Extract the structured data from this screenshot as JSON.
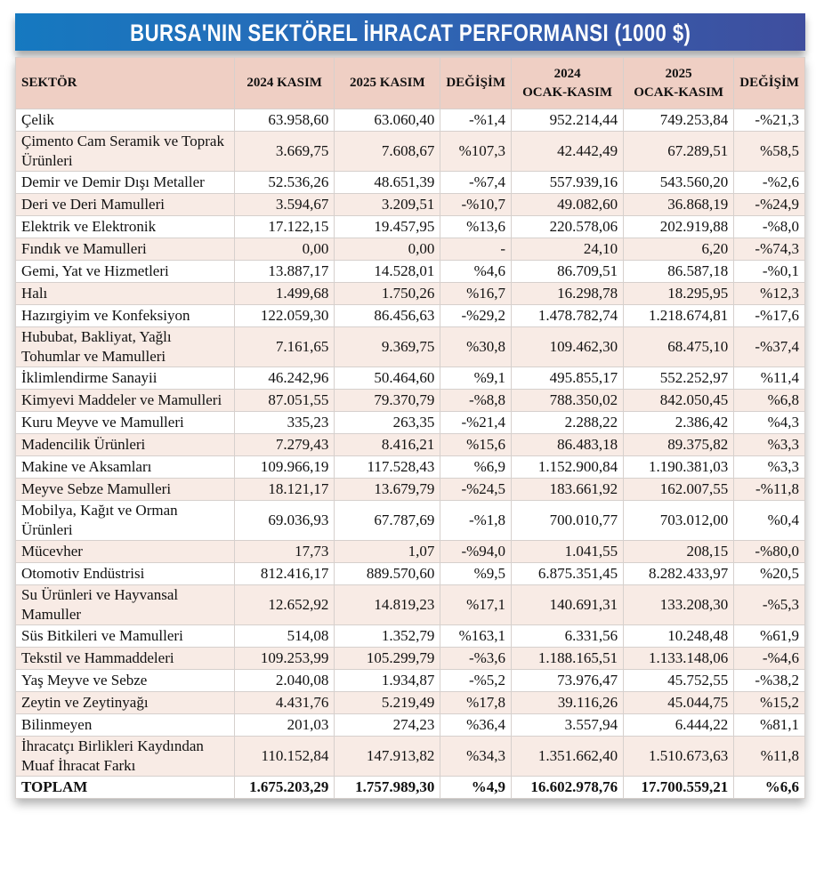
{
  "title": "BURSA'NIN SEKTÖREL İHRACAT PERFORMANSI (1000 $)",
  "headers": [
    "SEKTÖR",
    "2024 KASIM",
    "2025 KASIM",
    "DEĞİŞİM",
    "2024\nOCAK-KASIM",
    "2025\nOCAK-KASIM",
    "DEĞİŞİM"
  ],
  "rows": [
    [
      "Çelik",
      "63.958,60",
      "63.060,40",
      "-%1,4",
      "952.214,44",
      "749.253,84",
      "-%21,3"
    ],
    [
      "Çimento Cam Seramik ve Toprak Ürünleri",
      "3.669,75",
      "7.608,67",
      "%107,3",
      "42.442,49",
      "67.289,51",
      "%58,5"
    ],
    [
      "Demir ve Demir Dışı Metaller",
      "52.536,26",
      "48.651,39",
      "-%7,4",
      "557.939,16",
      "543.560,20",
      "-%2,6"
    ],
    [
      "Deri ve Deri Mamulleri",
      "3.594,67",
      "3.209,51",
      "-%10,7",
      "49.082,60",
      "36.868,19",
      "-%24,9"
    ],
    [
      "Elektrik ve Elektronik",
      "17.122,15",
      "19.457,95",
      "%13,6",
      "220.578,06",
      "202.919,88",
      "-%8,0"
    ],
    [
      "Fındık ve Mamulleri",
      "0,00",
      "0,00",
      "-",
      "24,10",
      "6,20",
      "-%74,3"
    ],
    [
      "Gemi, Yat ve Hizmetleri",
      "13.887,17",
      "14.528,01",
      "%4,6",
      "86.709,51",
      "86.587,18",
      "-%0,1"
    ],
    [
      "Halı",
      "1.499,68",
      "1.750,26",
      "%16,7",
      "16.298,78",
      "18.295,95",
      "%12,3"
    ],
    [
      "Hazırgiyim ve Konfeksiyon",
      "122.059,30",
      "86.456,63",
      "-%29,2",
      "1.478.782,74",
      "1.218.674,81",
      "-%17,6"
    ],
    [
      "Hububat, Bakliyat, Yağlı Tohumlar ve Mamulleri",
      "7.161,65",
      "9.369,75",
      "%30,8",
      "109.462,30",
      "68.475,10",
      "-%37,4"
    ],
    [
      "İklimlendirme Sanayii",
      "46.242,96",
      "50.464,60",
      "%9,1",
      "495.855,17",
      "552.252,97",
      "%11,4"
    ],
    [
      "Kimyevi Maddeler ve Mamulleri",
      "87.051,55",
      "79.370,79",
      "-%8,8",
      "788.350,02",
      "842.050,45",
      "%6,8"
    ],
    [
      "Kuru Meyve ve Mamulleri",
      "335,23",
      "263,35",
      "-%21,4",
      "2.288,22",
      "2.386,42",
      "%4,3"
    ],
    [
      "Madencilik Ürünleri",
      "7.279,43",
      "8.416,21",
      "%15,6",
      "86.483,18",
      "89.375,82",
      "%3,3"
    ],
    [
      "Makine ve Aksamları",
      "109.966,19",
      "117.528,43",
      "%6,9",
      "1.152.900,84",
      "1.190.381,03",
      "%3,3"
    ],
    [
      "Meyve Sebze Mamulleri",
      "18.121,17",
      "13.679,79",
      "-%24,5",
      "183.661,92",
      "162.007,55",
      "-%11,8"
    ],
    [
      "Mobilya, Kağıt ve Orman Ürünleri",
      "69.036,93",
      "67.787,69",
      "-%1,8",
      "700.010,77",
      "703.012,00",
      "%0,4"
    ],
    [
      "Mücevher",
      "17,73",
      "1,07",
      "-%94,0",
      "1.041,55",
      "208,15",
      "-%80,0"
    ],
    [
      "Otomotiv Endüstrisi",
      "812.416,17",
      "889.570,60",
      "%9,5",
      "6.875.351,45",
      "8.282.433,97",
      "%20,5"
    ],
    [
      "Su Ürünleri ve Hayvansal Mamuller",
      "12.652,92",
      "14.819,23",
      "%17,1",
      "140.691,31",
      "133.208,30",
      "-%5,3"
    ],
    [
      "Süs Bitkileri ve Mamulleri",
      "514,08",
      "1.352,79",
      "%163,1",
      "6.331,56",
      "10.248,48",
      "%61,9"
    ],
    [
      "Tekstil ve Hammaddeleri",
      "109.253,99",
      "105.299,79",
      "-%3,6",
      "1.188.165,51",
      "1.133.148,06",
      "-%4,6"
    ],
    [
      "Yaş Meyve ve Sebze",
      "2.040,08",
      "1.934,87",
      "-%5,2",
      "73.976,47",
      "45.752,55",
      "-%38,2"
    ],
    [
      "Zeytin ve Zeytinyağı",
      "4.431,76",
      "5.219,49",
      "%17,8",
      "39.116,26",
      "45.044,75",
      "%15,2"
    ],
    [
      "Bilinmeyen",
      "201,03",
      "274,23",
      "%36,4",
      "3.557,94",
      "6.444,22",
      "%81,1"
    ],
    [
      "İhracatçı Birlikleri Kaydından Muaf İhracat Farkı",
      "110.152,84",
      "147.913,82",
      "%34,3",
      "1.351.662,40",
      "1.510.673,63",
      "%11,8"
    ]
  ],
  "total": [
    "TOPLAM",
    "1.675.203,29",
    "1.757.989,30",
    "%4,9",
    "16.602.978,76",
    "17.700.559,21",
    "%6,6"
  ],
  "colors": {
    "title_start": "#1579c0",
    "title_end": "#3f4e9e",
    "header_bg": "#efcfc4",
    "alt_row": "#f8ebe5"
  }
}
